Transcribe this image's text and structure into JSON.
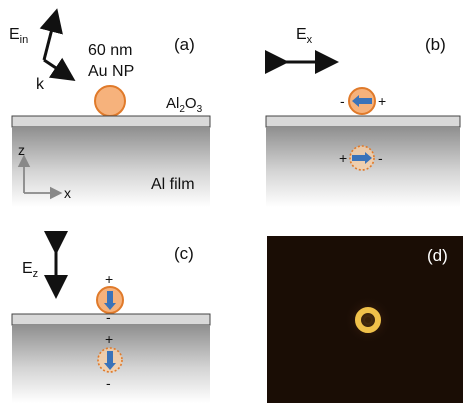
{
  "panels": {
    "a": {
      "label": "(a)",
      "field": "E",
      "field_sub": "in",
      "wavevector": "k",
      "np_size": "60 nm",
      "np_type": "Au NP",
      "oxide": "Al",
      "oxide_sub": "2",
      "oxide_suffix": "O",
      "oxide_sub2": "3",
      "film": "Al film",
      "axis_z": "z",
      "axis_x": "x"
    },
    "b": {
      "label": "(b)",
      "field": "E",
      "field_sub": "x",
      "np_minus": "-",
      "np_plus": "+",
      "image_plus": "+",
      "image_minus": "-"
    },
    "c": {
      "label": "(c)",
      "field": "E",
      "field_sub": "z",
      "np_plus": "+",
      "np_minus": "-",
      "image_plus": "+",
      "image_minus": "-"
    },
    "d": {
      "label": "(d)"
    }
  },
  "colors": {
    "nanoparticle_fill": "#f6b27c",
    "nanoparticle_stroke": "#e07a2a",
    "dipole_arrow": "#3b73b9",
    "slab_fill": "#d9d9d9",
    "film_top": "#8a8a8a",
    "panel_d_bg": "#1a0d05",
    "spot_ring": "#f0c14a"
  }
}
